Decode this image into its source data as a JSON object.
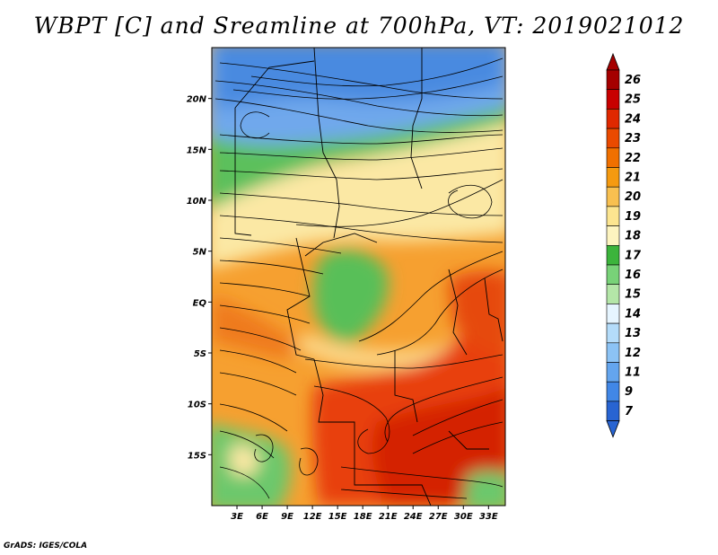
{
  "title": "WBPT [C] and Sreamline at 700hPa, VT: 2019021012",
  "footer": "GrADS: IGES/COLA",
  "map": {
    "lon_range": [
      0,
      35
    ],
    "lat_range": [
      -20,
      25
    ],
    "lat_ticks": [
      {
        "value": 20,
        "label": "20N"
      },
      {
        "value": 15,
        "label": "15N"
      },
      {
        "value": 10,
        "label": "10N"
      },
      {
        "value": 5,
        "label": "5N"
      },
      {
        "value": 0,
        "label": "EQ"
      },
      {
        "value": -5,
        "label": "5S"
      },
      {
        "value": -10,
        "label": "10S"
      },
      {
        "value": -15,
        "label": "15S"
      }
    ],
    "lon_ticks": [
      {
        "value": 3,
        "label": "3E"
      },
      {
        "value": 6,
        "label": "6E"
      },
      {
        "value": 9,
        "label": "9E"
      },
      {
        "value": 12,
        "label": "12E"
      },
      {
        "value": 15,
        "label": "15E"
      },
      {
        "value": 18,
        "label": "18E"
      },
      {
        "value": 21,
        "label": "21E"
      },
      {
        "value": 24,
        "label": "24E"
      },
      {
        "value": 27,
        "label": "27E"
      },
      {
        "value": 30,
        "label": "30E"
      },
      {
        "value": 33,
        "label": "33E"
      }
    ]
  },
  "colorbar": {
    "labels": [
      "26",
      "25",
      "24",
      "23",
      "22",
      "21",
      "20",
      "19",
      "18",
      "17",
      "16",
      "15",
      "14",
      "13",
      "12",
      "11",
      "9",
      "7"
    ],
    "colors": [
      "#a50000",
      "#c80000",
      "#e02800",
      "#ea4a00",
      "#f07000",
      "#f59a10",
      "#f8c050",
      "#fce590",
      "#fdf4c0",
      "#3cb43c",
      "#78d278",
      "#b4e6a8",
      "#e6f5ff",
      "#b4dcfa",
      "#8cc3f5",
      "#64a5ee",
      "#4187e6",
      "#2864d2"
    ]
  }
}
